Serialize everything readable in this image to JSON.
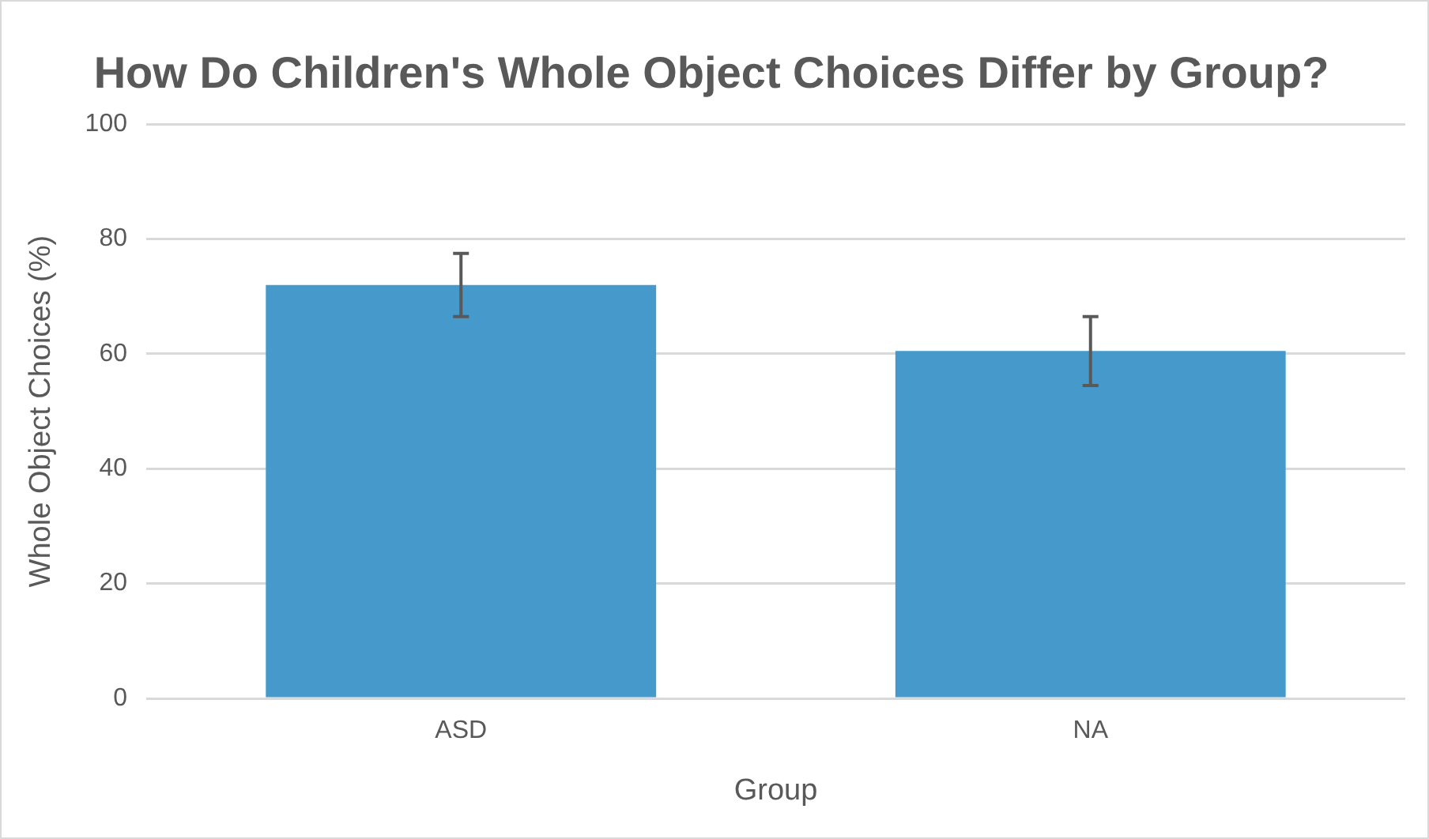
{
  "chart_data": {
    "type": "bar",
    "title": "How Do Children's Whole Object Choices Differ by Group?",
    "xlabel": "Group",
    "ylabel": "Whole Object Choices (%)",
    "categories": [
      "ASD",
      "NA"
    ],
    "values": [
      72,
      60.5
    ],
    "errors": [
      5.5,
      6
    ],
    "color": "#4599cb",
    "ylim": [
      0,
      100
    ],
    "yticks": [
      0,
      20,
      40,
      60,
      80,
      100
    ],
    "grid": "y"
  }
}
